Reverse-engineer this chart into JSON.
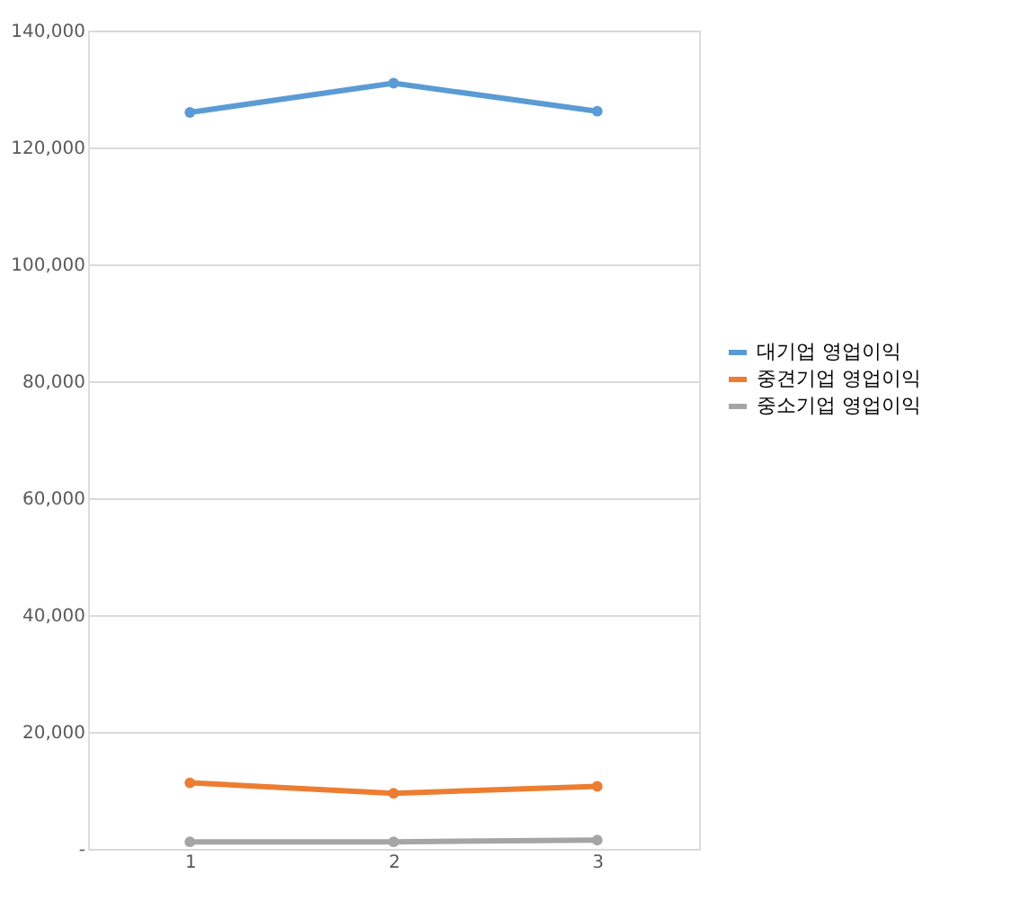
{
  "chart_data": {
    "type": "line",
    "categories": [
      "1",
      "2",
      "3"
    ],
    "series": [
      {
        "name": "대기업 영업이익",
        "color": "#5b9bd5",
        "values": [
          126000,
          131000,
          126200
        ]
      },
      {
        "name": "중견기업 영업이익",
        "color": "#ed7d31",
        "values": [
          11300,
          9500,
          10700
        ]
      },
      {
        "name": "중소기업 영업이익",
        "color": "#a5a5a5",
        "values": [
          1200,
          1200,
          1500
        ]
      }
    ],
    "ylim": [
      0,
      140000
    ],
    "yticks": [
      {
        "value": 0,
        "label": "-"
      },
      {
        "value": 20000,
        "label": "20,000"
      },
      {
        "value": 40000,
        "label": "40,000"
      },
      {
        "value": 60000,
        "label": "60,000"
      },
      {
        "value": 80000,
        "label": "80,000"
      },
      {
        "value": 100000,
        "label": "100,000"
      },
      {
        "value": 120000,
        "label": "120,000"
      },
      {
        "value": 140000,
        "label": "140,000"
      }
    ],
    "grid": "y",
    "legend": "right",
    "marker": "circle",
    "line_style": "solid"
  }
}
